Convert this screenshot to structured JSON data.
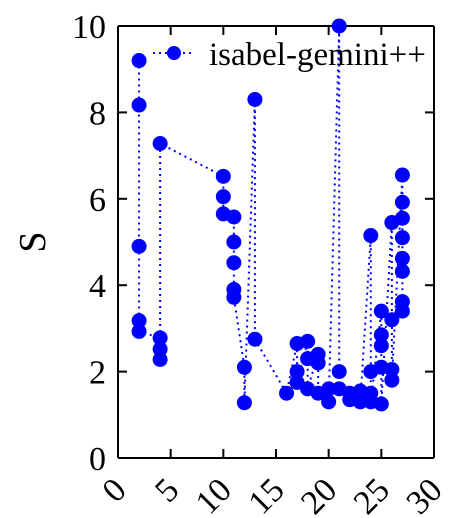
{
  "chart_data": {
    "type": "scatter",
    "title": "",
    "xlabel": "",
    "ylabel": "S",
    "xlim": [
      0,
      30
    ],
    "ylim": [
      0,
      10
    ],
    "xticks": [
      0,
      5,
      10,
      15,
      20,
      25,
      30
    ],
    "yticks": [
      0,
      2,
      4,
      6,
      8,
      10
    ],
    "xtick_labels": [
      "0",
      "5",
      "10",
      "15",
      "20",
      "25",
      "30"
    ],
    "ytick_labels": [
      "0",
      "2",
      "4",
      "6",
      "8",
      "10"
    ],
    "xtick_rotation": "diagonal",
    "grid": false,
    "legend_position": "top-right",
    "color": "#0000ff",
    "line_style": "dotted",
    "marker": "filled-circle",
    "series": [
      {
        "name": "isabel-gemini++",
        "points": [
          [
            2,
            9.2
          ],
          [
            2,
            8.17
          ],
          [
            2,
            4.9
          ],
          [
            2,
            3.18
          ],
          [
            2,
            2.93
          ],
          [
            4,
            2.78
          ],
          [
            4,
            2.52
          ],
          [
            4,
            2.28
          ],
          [
            4,
            7.28
          ],
          [
            10,
            6.52
          ],
          [
            10,
            6.05
          ],
          [
            10,
            5.65
          ],
          [
            11,
            5.58
          ],
          [
            11,
            5.0
          ],
          [
            11,
            4.52
          ],
          [
            11,
            3.9
          ],
          [
            11,
            3.72
          ],
          [
            12,
            2.1
          ],
          [
            12,
            1.28
          ],
          [
            13,
            8.3
          ],
          [
            13,
            2.75
          ],
          [
            16,
            1.5
          ],
          [
            17,
            2.65
          ],
          [
            17,
            2.0
          ],
          [
            17,
            1.75
          ],
          [
            18,
            2.7
          ],
          [
            18,
            2.3
          ],
          [
            18,
            1.6
          ],
          [
            19,
            2.4
          ],
          [
            19,
            2.2
          ],
          [
            19,
            1.5
          ],
          [
            20,
            1.6
          ],
          [
            20,
            1.3
          ],
          [
            21,
            10.0
          ],
          [
            21,
            2.0
          ],
          [
            21,
            1.6
          ],
          [
            22,
            1.5
          ],
          [
            22,
            1.35
          ],
          [
            23,
            1.55
          ],
          [
            23,
            1.3
          ],
          [
            24,
            5.15
          ],
          [
            24,
            2.0
          ],
          [
            24,
            1.5
          ],
          [
            24,
            1.3
          ],
          [
            25,
            3.4
          ],
          [
            25,
            2.85
          ],
          [
            25,
            2.6
          ],
          [
            25,
            2.1
          ],
          [
            25,
            1.25
          ],
          [
            26,
            5.45
          ],
          [
            26,
            3.2
          ],
          [
            26,
            2.05
          ],
          [
            26,
            1.8
          ],
          [
            27,
            6.55
          ],
          [
            27,
            5.92
          ],
          [
            27,
            5.55
          ],
          [
            27,
            5.1
          ],
          [
            27,
            4.62
          ],
          [
            27,
            4.32
          ],
          [
            27,
            3.62
          ],
          [
            27,
            3.4
          ]
        ]
      }
    ]
  }
}
